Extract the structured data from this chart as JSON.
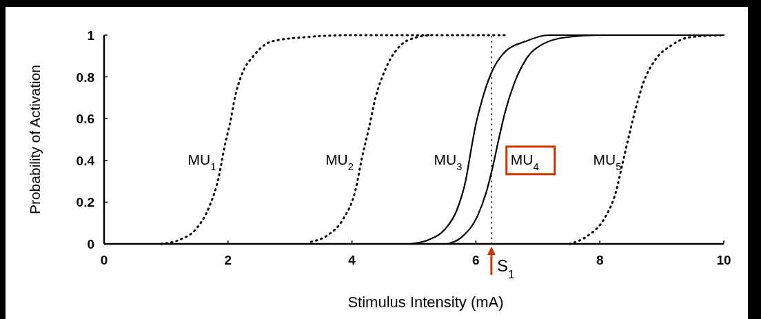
{
  "chart_data": {
    "type": "line",
    "xlabel": "Stimulus Intensity (mA)",
    "ylabel": "Probability of Activation",
    "xlim": [
      0,
      10
    ],
    "ylim": [
      0,
      1
    ],
    "xticks": [
      0,
      2,
      4,
      6,
      8,
      10
    ],
    "yticks": [
      0,
      0.2,
      0.4,
      0.6,
      0.8,
      1
    ],
    "grid": false,
    "series": [
      {
        "name": "MU$_{1}$",
        "color": "#000000",
        "line_style": "dotted",
        "x": [
          0.92,
          1.22,
          1.48,
          1.7,
          1.85,
          1.94,
          2.04,
          2.11,
          2.22,
          2.41,
          2.71,
          3.23,
          4.0,
          5.3
        ],
        "values": [
          0,
          0.02,
          0.07,
          0.18,
          0.32,
          0.46,
          0.59,
          0.7,
          0.81,
          0.9,
          0.97,
          0.99,
          1,
          1
        ]
      },
      {
        "name": "MU$_{2}$",
        "color": "#000000",
        "line_style": "dotted",
        "x": [
          3.34,
          3.6,
          3.86,
          4.05,
          4.16,
          4.27,
          4.38,
          4.53,
          4.72,
          4.94,
          5.3,
          6.5
        ],
        "values": [
          0.01,
          0.04,
          0.12,
          0.25,
          0.41,
          0.55,
          0.7,
          0.83,
          0.93,
          0.98,
          1,
          1
        ]
      },
      {
        "name": "MU$_{3}$",
        "color": "#000000",
        "line_style": "solid",
        "x": [
          4.94,
          5.24,
          5.5,
          5.69,
          5.84,
          5.91,
          5.99,
          6.1,
          6.25,
          6.47,
          6.8,
          7.17,
          10
        ],
        "values": [
          0,
          0.02,
          0.07,
          0.16,
          0.31,
          0.43,
          0.56,
          0.69,
          0.82,
          0.92,
          0.97,
          1,
          1
        ]
      },
      {
        "name": "MU$_{4}$",
        "color": "#000000",
        "line_style": "solid",
        "x": [
          5.54,
          5.8,
          6.02,
          6.17,
          6.28,
          6.36,
          6.47,
          6.62,
          6.8,
          7.1,
          7.47,
          8.0,
          10
        ],
        "values": [
          0,
          0.04,
          0.13,
          0.25,
          0.38,
          0.49,
          0.63,
          0.77,
          0.88,
          0.96,
          0.99,
          1,
          1
        ]
      },
      {
        "name": "MU$_{5}$",
        "color": "#000000",
        "line_style": "dotted",
        "x": [
          7.51,
          7.81,
          8.07,
          8.26,
          8.37,
          8.48,
          8.59,
          8.7,
          8.89,
          9.15,
          9.45,
          10
        ],
        "values": [
          0,
          0.04,
          0.12,
          0.25,
          0.39,
          0.53,
          0.66,
          0.77,
          0.88,
          0.95,
          0.99,
          1
        ]
      }
    ],
    "ref_lines": [
      {
        "axis": "x",
        "value": 6.25,
        "label": "S$_{1}$",
        "color": "#000000",
        "line_style": "dotted"
      }
    ]
  }
}
